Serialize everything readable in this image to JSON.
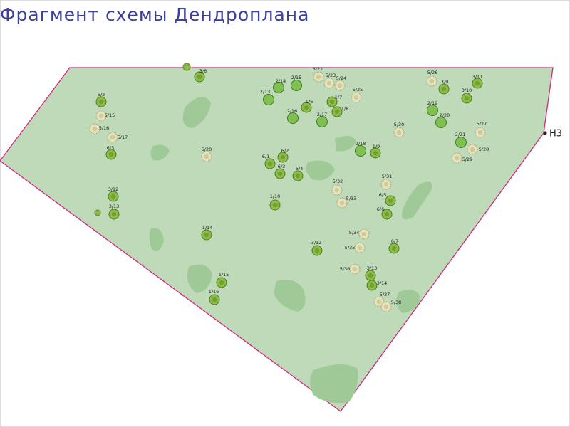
{
  "title": "Фрагмент схемы Дендроплана",
  "marker": "Н3",
  "plants": [
    "3/6",
    "6/2",
    "5/15",
    "5/16",
    "5/17",
    "6/3",
    "3/12",
    "3/13",
    "1/14",
    "1/15",
    "1/16",
    "2/13",
    "2/14",
    "2/15",
    "5/22",
    "5/23",
    "5/24",
    "5/25",
    "1/6",
    "1/7",
    "1/8",
    "2/16",
    "2/17",
    "5/20",
    "6/1",
    "6/2",
    "6/3",
    "6/4",
    "2/18",
    "1/9",
    "5/30",
    "5/31",
    "5/32",
    "5/33",
    "6/5",
    "6/6",
    "1/10",
    "3/12",
    "6/7",
    "5/34",
    "5/35",
    "5/36",
    "3/13",
    "3/14",
    "5/37",
    "5/38",
    "5/26",
    "3/9",
    "3/11",
    "3/10",
    "2/19",
    "2/20",
    "2/21",
    "5/27",
    "5/28",
    "5/29"
  ]
}
